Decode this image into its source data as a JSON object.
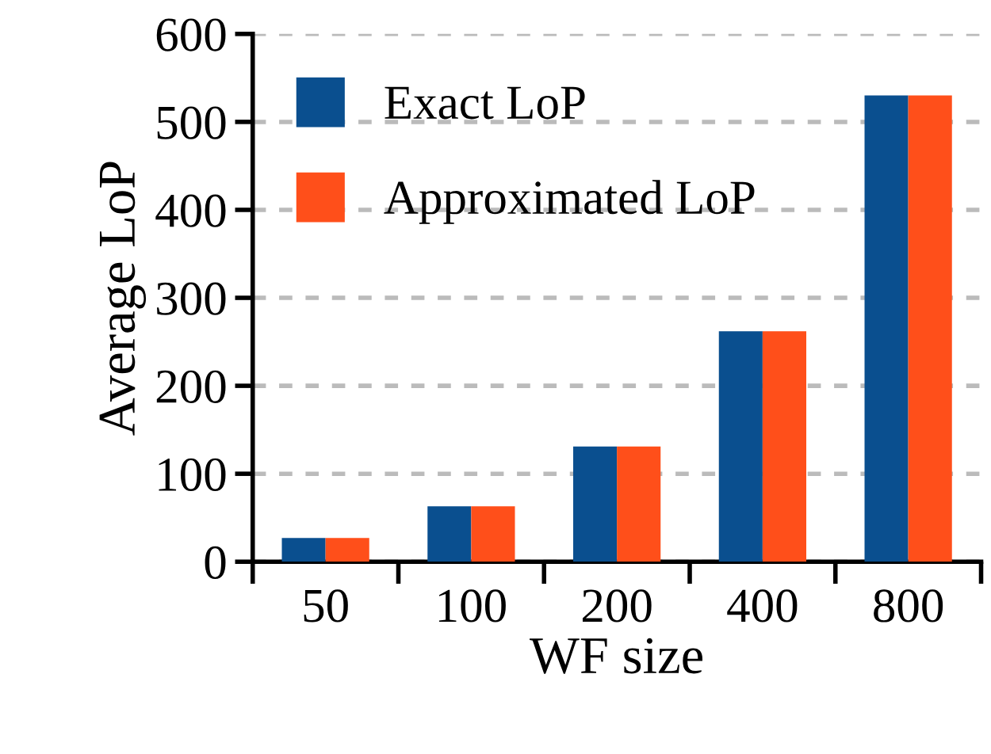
{
  "chart_data": {
    "type": "bar",
    "xlabel": "WF size",
    "ylabel": "Average LoP",
    "categories": [
      "50",
      "100",
      "200",
      "400",
      "800"
    ],
    "series": [
      {
        "name": "Exact LoP",
        "color": "#0a4f8f",
        "values": [
          27,
          63,
          131,
          262,
          530
        ]
      },
      {
        "name": "Approximated LoP",
        "color": "#ff4f1a",
        "values": [
          27,
          63,
          131,
          262,
          530
        ]
      }
    ],
    "ylim": [
      0,
      600
    ],
    "yticks": [
      0,
      100,
      200,
      300,
      400,
      500,
      600
    ],
    "grid": "y",
    "legend": "top left"
  }
}
